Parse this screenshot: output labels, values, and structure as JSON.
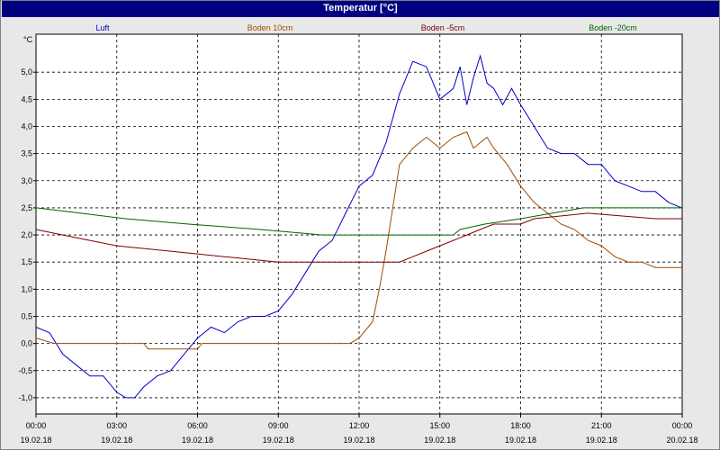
{
  "window": {
    "title": "Temperatur [°C]"
  },
  "colors": {
    "Luft": "#0000c8",
    "Boden 10cm": "#a04a00",
    "Boden -5cm": "#7a0000",
    "Boden -20cm": "#006400"
  },
  "chart_data": {
    "type": "line",
    "title": "Temperatur [°C]",
    "ylabel": "°C",
    "ylim": [
      -1.3,
      5.7
    ],
    "yticks": [
      "5,0",
      "4,5",
      "4,0",
      "3,5",
      "3,0",
      "2,5",
      "2,0",
      "1,5",
      "1,0",
      "0,5",
      "0,0",
      "-0,5",
      "-1,0"
    ],
    "xlim": [
      "19.02.18 00:00",
      "20.02.18 00:00"
    ],
    "xticks": [
      {
        "time": "00:00",
        "date": "19.02.18"
      },
      {
        "time": "03:00",
        "date": "19.02.18"
      },
      {
        "time": "06:00",
        "date": "19.02.18"
      },
      {
        "time": "09:00",
        "date": "19.02.18"
      },
      {
        "time": "12:00",
        "date": "19.02.18"
      },
      {
        "time": "15:00",
        "date": "19.02.18"
      },
      {
        "time": "18:00",
        "date": "19.02.18"
      },
      {
        "time": "21:00",
        "date": "19.02.18"
      },
      {
        "time": "00:00",
        "date": "20.02.18"
      }
    ],
    "grid": true,
    "legend_position": "top",
    "series": [
      {
        "name": "Luft",
        "points": [
          [
            "00:00",
            0.3
          ],
          [
            "00:30",
            0.2
          ],
          [
            "01:00",
            -0.2
          ],
          [
            "01:30",
            -0.4
          ],
          [
            "02:00",
            -0.6
          ],
          [
            "02:30",
            -0.6
          ],
          [
            "03:00",
            -0.9
          ],
          [
            "03:20",
            -1.0
          ],
          [
            "03:40",
            -1.0
          ],
          [
            "04:00",
            -0.8
          ],
          [
            "04:30",
            -0.6
          ],
          [
            "05:00",
            -0.5
          ],
          [
            "05:30",
            -0.2
          ],
          [
            "06:00",
            0.1
          ],
          [
            "06:30",
            0.3
          ],
          [
            "07:00",
            0.2
          ],
          [
            "07:30",
            0.4
          ],
          [
            "08:00",
            0.5
          ],
          [
            "08:30",
            0.5
          ],
          [
            "09:00",
            0.6
          ],
          [
            "09:30",
            0.9
          ],
          [
            "10:00",
            1.3
          ],
          [
            "10:30",
            1.7
          ],
          [
            "11:00",
            1.9
          ],
          [
            "11:30",
            2.4
          ],
          [
            "12:00",
            2.9
          ],
          [
            "12:30",
            3.1
          ],
          [
            "13:00",
            3.7
          ],
          [
            "13:30",
            4.6
          ],
          [
            "14:00",
            5.2
          ],
          [
            "14:30",
            5.1
          ],
          [
            "15:00",
            4.5
          ],
          [
            "15:30",
            4.7
          ],
          [
            "15:45",
            5.1
          ],
          [
            "16:00",
            4.4
          ],
          [
            "16:15",
            4.9
          ],
          [
            "16:30",
            5.3
          ],
          [
            "16:45",
            4.8
          ],
          [
            "17:00",
            4.7
          ],
          [
            "17:20",
            4.4
          ],
          [
            "17:40",
            4.7
          ],
          [
            "18:00",
            4.4
          ],
          [
            "18:30",
            4.0
          ],
          [
            "19:00",
            3.6
          ],
          [
            "19:30",
            3.5
          ],
          [
            "20:00",
            3.5
          ],
          [
            "20:30",
            3.3
          ],
          [
            "21:00",
            3.3
          ],
          [
            "21:30",
            3.0
          ],
          [
            "22:00",
            2.9
          ],
          [
            "22:30",
            2.8
          ],
          [
            "23:00",
            2.8
          ],
          [
            "23:30",
            2.6
          ],
          [
            "23:59",
            2.5
          ]
        ]
      },
      {
        "name": "Boden 10cm",
        "points": [
          [
            "00:00",
            0.1
          ],
          [
            "00:40",
            0.0
          ],
          [
            "04:00",
            0.0
          ],
          [
            "04:10",
            -0.1
          ],
          [
            "06:00",
            -0.1
          ],
          [
            "06:10",
            0.0
          ],
          [
            "11:40",
            0.0
          ],
          [
            "12:00",
            0.1
          ],
          [
            "12:30",
            0.4
          ],
          [
            "12:45",
            1.0
          ],
          [
            "13:00",
            1.7
          ],
          [
            "13:30",
            3.3
          ],
          [
            "14:00",
            3.6
          ],
          [
            "14:30",
            3.8
          ],
          [
            "15:00",
            3.6
          ],
          [
            "15:30",
            3.8
          ],
          [
            "16:00",
            3.9
          ],
          [
            "16:15",
            3.6
          ],
          [
            "16:45",
            3.8
          ],
          [
            "17:00",
            3.6
          ],
          [
            "17:30",
            3.3
          ],
          [
            "18:00",
            2.9
          ],
          [
            "18:30",
            2.6
          ],
          [
            "19:00",
            2.4
          ],
          [
            "19:30",
            2.2
          ],
          [
            "20:00",
            2.1
          ],
          [
            "20:30",
            1.9
          ],
          [
            "21:00",
            1.8
          ],
          [
            "21:30",
            1.6
          ],
          [
            "22:00",
            1.5
          ],
          [
            "22:30",
            1.5
          ],
          [
            "23:00",
            1.4
          ],
          [
            "23:59",
            1.4
          ]
        ]
      },
      {
        "name": "Boden -5cm",
        "points": [
          [
            "00:00",
            2.1
          ],
          [
            "01:00",
            2.0
          ],
          [
            "02:00",
            1.9
          ],
          [
            "03:00",
            1.8
          ],
          [
            "05:00",
            1.7
          ],
          [
            "07:00",
            1.6
          ],
          [
            "09:00",
            1.5
          ],
          [
            "13:30",
            1.5
          ],
          [
            "14:00",
            1.6
          ],
          [
            "14:30",
            1.7
          ],
          [
            "15:00",
            1.8
          ],
          [
            "15:30",
            1.9
          ],
          [
            "16:00",
            2.0
          ],
          [
            "16:30",
            2.1
          ],
          [
            "17:00",
            2.2
          ],
          [
            "18:00",
            2.2
          ],
          [
            "18:30",
            2.3
          ],
          [
            "20:30",
            2.4
          ],
          [
            "23:00",
            2.3
          ],
          [
            "23:59",
            2.3
          ]
        ]
      },
      {
        "name": "Boden -20cm",
        "points": [
          [
            "00:00",
            2.5
          ],
          [
            "01:40",
            2.4
          ],
          [
            "03:20",
            2.3
          ],
          [
            "05:40",
            2.2
          ],
          [
            "08:20",
            2.1
          ],
          [
            "10:40",
            2.0
          ],
          [
            "15:30",
            2.0
          ],
          [
            "15:45",
            2.1
          ],
          [
            "16:40",
            2.2
          ],
          [
            "18:00",
            2.3
          ],
          [
            "19:10",
            2.4
          ],
          [
            "20:20",
            2.5
          ],
          [
            "23:59",
            2.5
          ]
        ]
      }
    ]
  }
}
